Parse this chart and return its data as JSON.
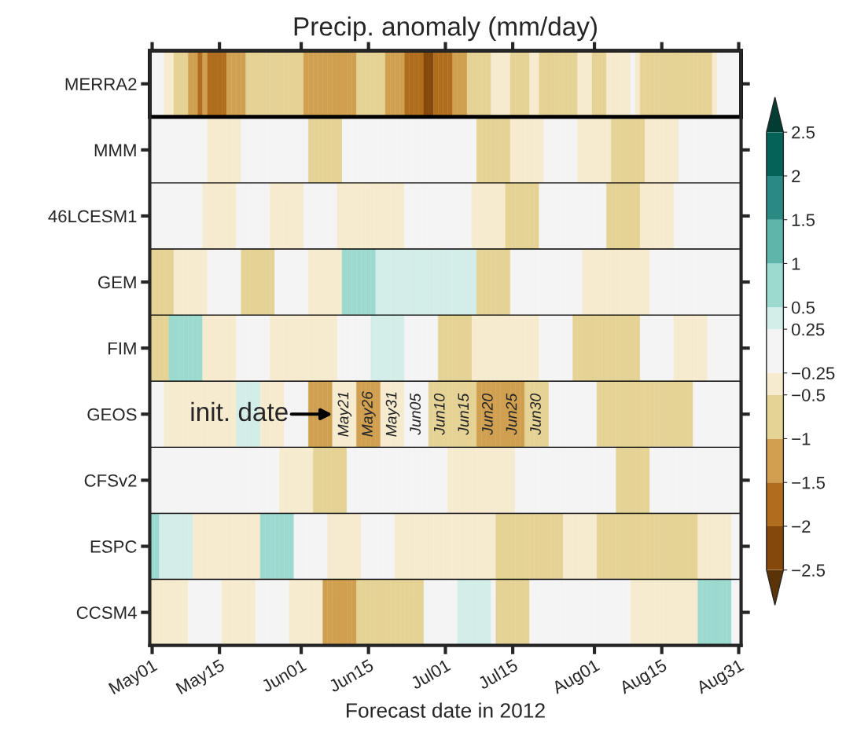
{
  "chart_data": {
    "type": "heatmap",
    "title": "Precip. anomaly (mm/day)",
    "xlabel": "Forecast date in 2012",
    "categories": [
      "May01",
      null,
      null,
      null,
      null,
      null,
      null,
      null,
      null,
      null,
      null,
      null,
      null,
      null,
      "May15",
      null,
      null,
      null,
      null,
      null,
      null,
      null,
      null,
      null,
      null,
      null,
      null,
      null,
      null,
      null,
      null,
      "Jun01",
      null,
      null,
      null,
      null,
      null,
      null,
      null,
      null,
      null,
      null,
      null,
      null,
      null,
      "Jun15",
      null,
      null,
      null,
      null,
      null,
      null,
      null,
      null,
      null,
      null,
      null,
      null,
      null,
      null,
      null,
      "Jul01",
      null,
      null,
      null,
      null,
      null,
      null,
      null,
      null,
      null,
      null,
      null,
      null,
      null,
      "Jul15",
      null,
      null,
      null,
      null,
      null,
      null,
      null,
      null,
      null,
      null,
      null,
      null,
      null,
      null,
      null,
      null,
      "Aug01",
      null,
      null,
      null,
      null,
      null,
      null,
      null,
      null,
      null,
      null,
      null,
      null,
      null,
      "Aug15",
      null,
      null,
      null,
      null,
      null,
      null,
      null,
      null,
      null,
      null,
      null,
      null,
      null,
      null,
      null,
      "Aug31"
    ],
    "y_categories": [
      "MERRA2",
      "MMM",
      "46LCESM1",
      "GEM",
      "FIM",
      "GEOS",
      "CFSv2",
      "ESPC",
      "CCSM4"
    ],
    "cells": [
      [
        0,
        0,
        0,
        -0.4,
        -0.4,
        -0.75,
        -0.75,
        -0.75,
        -1.25,
        -1.25,
        -1.75,
        -1.25,
        -1.75,
        -1.75,
        -1.75,
        -1.75,
        -1.25,
        -1.25,
        -1.25,
        -1.25,
        -0.75,
        -0.75,
        -0.75,
        -0.75,
        -0.75,
        -0.75,
        -0.75,
        -0.75,
        -0.75,
        -0.75,
        -0.75,
        -0.75,
        -1.25,
        -1.25,
        -1.25,
        -1.25,
        -1.25,
        -1.25,
        -1.25,
        -1.25,
        -1.25,
        -1.25,
        -1.25,
        -0.75,
        -0.75,
        -0.75,
        -0.75,
        -0.75,
        -0.75,
        -1.25,
        -1.25,
        -1.25,
        -1.25,
        -1.75,
        -1.75,
        -1.75,
        -1.75,
        -2.25,
        -2.25,
        -1.75,
        -1.75,
        -1.75,
        -1.75,
        -1.25,
        -1.25,
        -1.25,
        -0.75,
        -0.75,
        -0.75,
        -0.75,
        -0.75,
        -0.4,
        -0.4,
        -0.4,
        -0.4,
        -0.75,
        -0.75,
        -0.75,
        -0.75,
        -0.4,
        -0.4,
        -0.75,
        -0.75,
        -0.75,
        -0.75,
        -0.75,
        -0.75,
        -0.75,
        -0.75,
        -0.4,
        -0.4,
        -0.4,
        -0.75,
        -0.75,
        -0.75,
        -0.4,
        -0.4,
        -0.4,
        -0.4,
        -0.4,
        0,
        -0.4,
        -0.75,
        -0.75,
        -0.75,
        -0.75,
        -0.75,
        -0.75,
        -0.75,
        -0.75,
        -0.75,
        -0.75,
        -0.75,
        -0.75,
        -0.75,
        -0.75,
        -0.75,
        -0.4,
        0,
        0,
        0,
        0,
        0
      ],
      [
        0,
        0,
        0,
        0,
        0,
        0,
        0,
        0,
        0,
        0,
        0,
        0,
        -0.4,
        -0.4,
        -0.4,
        -0.4,
        -0.4,
        -0.4,
        -0.4,
        0,
        0,
        0,
        0,
        0,
        0,
        0,
        0,
        0,
        0,
        0,
        0,
        0,
        0,
        -0.75,
        -0.75,
        -0.75,
        -0.75,
        -0.75,
        -0.75,
        -0.75,
        0,
        0,
        0,
        0,
        0,
        0,
        0,
        0,
        0,
        0,
        0,
        0,
        0,
        0,
        0,
        0,
        0,
        0,
        0,
        0,
        0,
        0,
        0,
        0,
        0,
        0,
        0,
        0,
        -0.75,
        -0.75,
        -0.75,
        -0.75,
        -0.75,
        -0.75,
        -0.75,
        -0.4,
        -0.4,
        -0.4,
        -0.4,
        -0.4,
        -0.4,
        -0.4,
        0,
        0,
        0,
        0,
        0,
        0,
        0,
        -0.4,
        -0.4,
        -0.4,
        -0.4,
        -0.4,
        -0.4,
        -0.4,
        -0.75,
        -0.75,
        -0.75,
        -0.75,
        -0.75,
        -0.75,
        -0.75,
        -0.4,
        -0.4,
        -0.4,
        -0.4,
        -0.4,
        -0.4,
        -0.4,
        0,
        0,
        0,
        0,
        0,
        0,
        0,
        0,
        0,
        0,
        0,
        0,
        0
      ],
      [
        0,
        0,
        0,
        0,
        0,
        0,
        0,
        0,
        0,
        0,
        0,
        -0.4,
        -0.4,
        -0.4,
        -0.4,
        -0.4,
        -0.4,
        -0.4,
        0,
        0,
        0,
        0,
        0,
        0,
        0,
        -0.4,
        -0.4,
        -0.4,
        -0.4,
        -0.4,
        -0.4,
        -0.4,
        0,
        0,
        0,
        0,
        0,
        0,
        0,
        -0.4,
        -0.4,
        -0.4,
        -0.4,
        -0.4,
        -0.4,
        -0.4,
        -0.4,
        -0.4,
        -0.4,
        -0.4,
        -0.4,
        -0.4,
        -0.4,
        0,
        0,
        0,
        0,
        0,
        0,
        0,
        0,
        0,
        0,
        0,
        0,
        0,
        0,
        -0.4,
        -0.4,
        -0.4,
        -0.4,
        -0.4,
        -0.4,
        -0.4,
        -0.75,
        -0.75,
        -0.75,
        -0.75,
        -0.75,
        -0.75,
        -0.75,
        0,
        0,
        0,
        0,
        0,
        0,
        0,
        0,
        0,
        0,
        0,
        0,
        0,
        0,
        -0.75,
        -0.75,
        -0.75,
        -0.75,
        -0.75,
        -0.75,
        -0.75,
        -0.4,
        -0.4,
        -0.4,
        -0.4,
        -0.4,
        -0.4,
        -0.4,
        0,
        0,
        0,
        0,
        0,
        0,
        0,
        0,
        0,
        0,
        0,
        0,
        0,
        0
      ],
      [
        -0.75,
        -0.75,
        -0.75,
        -0.75,
        -0.75,
        -0.4,
        -0.4,
        -0.4,
        -0.4,
        -0.4,
        -0.4,
        -0.4,
        0,
        0,
        0,
        0,
        0,
        0,
        0,
        -0.75,
        -0.75,
        -0.75,
        -0.75,
        -0.75,
        -0.75,
        -0.75,
        0,
        0,
        0,
        0,
        0,
        0,
        0,
        -0.4,
        -0.4,
        -0.4,
        -0.4,
        -0.4,
        -0.4,
        -0.4,
        0.75,
        0.75,
        0.75,
        0.75,
        0.75,
        0.75,
        0.75,
        0.4,
        0.4,
        0.4,
        0.4,
        0.4,
        0.4,
        0.4,
        0.4,
        0.4,
        0.4,
        0.4,
        0.4,
        0.4,
        0.4,
        0.4,
        0.4,
        0.4,
        0.4,
        0.4,
        0.4,
        0.4,
        -0.75,
        -0.75,
        -0.75,
        -0.75,
        -0.75,
        -0.75,
        -0.75,
        0,
        0,
        0,
        0,
        0,
        0,
        0,
        0,
        0,
        0,
        0,
        0,
        0,
        0,
        0,
        -0.4,
        -0.4,
        -0.4,
        -0.4,
        -0.4,
        -0.4,
        -0.4,
        -0.4,
        -0.4,
        -0.4,
        -0.4,
        -0.4,
        -0.4,
        -0.4,
        0,
        0,
        0,
        0,
        0,
        0,
        0,
        0,
        0,
        0,
        0,
        0,
        0,
        0,
        0,
        0,
        0,
        0,
        0
      ],
      [
        -0.75,
        -0.75,
        -0.75,
        -0.75,
        0.75,
        0.75,
        0.75,
        0.75,
        0.75,
        0.75,
        0.75,
        -0.4,
        -0.4,
        -0.4,
        -0.4,
        -0.4,
        -0.4,
        -0.4,
        0,
        0,
        0,
        0,
        0,
        0,
        0,
        -0.4,
        -0.4,
        -0.4,
        -0.4,
        -0.4,
        -0.4,
        -0.4,
        -0.4,
        -0.4,
        -0.4,
        -0.4,
        -0.4,
        -0.4,
        -0.4,
        0,
        0,
        0,
        0,
        0,
        0,
        0,
        0.4,
        0.4,
        0.4,
        0.4,
        0.4,
        0.4,
        0.4,
        0,
        0,
        0,
        0,
        0,
        0,
        0,
        -0.75,
        -0.75,
        -0.75,
        -0.75,
        -0.75,
        -0.75,
        -0.75,
        -0.4,
        -0.4,
        -0.4,
        -0.4,
        -0.4,
        -0.4,
        -0.4,
        -0.4,
        -0.4,
        -0.4,
        -0.4,
        -0.4,
        -0.4,
        -0.4,
        0,
        0,
        0,
        0,
        0,
        0,
        0,
        -0.75,
        -0.75,
        -0.75,
        -0.75,
        -0.75,
        -0.75,
        -0.75,
        -0.75,
        -0.75,
        -0.75,
        -0.75,
        -0.75,
        -0.75,
        -0.75,
        0,
        0,
        0,
        0,
        0,
        0,
        0,
        -0.4,
        -0.4,
        -0.4,
        -0.4,
        -0.4,
        -0.4,
        -0.4,
        0,
        0,
        0,
        0,
        0,
        0,
        0
      ],
      [
        0,
        0,
        0,
        -0.4,
        -0.4,
        -0.4,
        -0.4,
        -0.4,
        -0.4,
        -0.4,
        -0.4,
        -0.4,
        -0.4,
        -0.4,
        -0.4,
        -0.4,
        -0.4,
        -0.4,
        0.4,
        0.4,
        0.4,
        0.4,
        0.4,
        -0.4,
        -0.4,
        -0.4,
        -0.4,
        -0.4,
        0,
        0,
        0,
        0,
        0,
        -1.25,
        -1.25,
        -1.25,
        -1.25,
        -1.25,
        -0.4,
        -0.4,
        -0.4,
        -0.4,
        -0.4,
        -1.25,
        -1.25,
        -1.25,
        -1.25,
        -1.25,
        -0.4,
        -0.4,
        -0.4,
        -0.4,
        -0.4,
        0,
        0,
        0,
        0,
        0,
        -0.75,
        -0.75,
        -0.75,
        -0.75,
        -0.75,
        -0.75,
        -0.75,
        -0.75,
        -0.75,
        -0.75,
        -1.25,
        -1.25,
        -1.25,
        -1.25,
        -1.25,
        -1.25,
        -1.25,
        -1.25,
        -1.25,
        -1.25,
        -0.75,
        -0.75,
        -0.75,
        -0.75,
        -0.75,
        0,
        0,
        0,
        0,
        0,
        0,
        0,
        0,
        0,
        0,
        -0.75,
        -0.75,
        -0.75,
        -0.75,
        -0.75,
        -0.75,
        -0.75,
        -0.75,
        -0.75,
        -0.75,
        -0.75,
        -0.75,
        -0.75,
        -0.75,
        -0.75,
        -0.75,
        -0.75,
        -0.75,
        -0.75,
        -0.75,
        0,
        0,
        0,
        0,
        0,
        0,
        0,
        0,
        0,
        0
      ],
      [
        0,
        0,
        0,
        0,
        0,
        0,
        0,
        0,
        0,
        0,
        0,
        0,
        0,
        0,
        0,
        0,
        0,
        0,
        0,
        0,
        0,
        0,
        0,
        0,
        0,
        0,
        0,
        -0.4,
        -0.4,
        -0.4,
        -0.4,
        -0.4,
        -0.4,
        -0.4,
        -0.75,
        -0.75,
        -0.75,
        -0.75,
        -0.75,
        -0.75,
        -0.75,
        0,
        0,
        0,
        0,
        0,
        0,
        0,
        0,
        0,
        0,
        0,
        0,
        0,
        0,
        0,
        0,
        0,
        0,
        0,
        0,
        0,
        -0.4,
        -0.4,
        -0.4,
        -0.4,
        -0.4,
        -0.4,
        -0.4,
        -0.4,
        -0.4,
        -0.4,
        -0.4,
        -0.4,
        -0.4,
        -0.4,
        0,
        0,
        0,
        0,
        0,
        0,
        0,
        0,
        0,
        0,
        0,
        0,
        0,
        0,
        0,
        0,
        0,
        0,
        0,
        0,
        0,
        -0.75,
        -0.75,
        -0.75,
        -0.75,
        -0.75,
        -0.75,
        -0.75,
        0,
        0,
        0,
        0,
        0,
        0,
        0,
        0,
        0,
        0,
        0,
        0,
        0,
        0,
        0,
        0,
        0,
        0,
        0
      ],
      [
        0.75,
        0.75,
        0.4,
        0.4,
        0.4,
        0.4,
        0.4,
        0.4,
        0.4,
        -0.4,
        -0.4,
        -0.4,
        -0.4,
        -0.4,
        -0.4,
        -0.4,
        -0.4,
        -0.4,
        -0.4,
        -0.4,
        -0.4,
        -0.4,
        -0.4,
        0.75,
        0.75,
        0.75,
        0.75,
        0.75,
        0.75,
        0.75,
        0,
        0,
        0,
        0,
        0,
        0,
        0,
        -0.4,
        -0.4,
        -0.4,
        -0.4,
        -0.4,
        -0.4,
        -0.4,
        0,
        0,
        0,
        0,
        0,
        0,
        0,
        -0.4,
        -0.4,
        -0.4,
        -0.4,
        -0.4,
        -0.4,
        -0.4,
        -0.4,
        -0.4,
        -0.4,
        -0.4,
        -0.4,
        -0.4,
        -0.4,
        -0.4,
        -0.4,
        -0.4,
        -0.4,
        -0.4,
        -0.4,
        -0.4,
        -0.75,
        -0.75,
        -0.75,
        -0.75,
        -0.75,
        -0.75,
        -0.75,
        -0.75,
        -0.75,
        -0.75,
        -0.75,
        -0.75,
        -0.75,
        -0.75,
        -0.4,
        -0.4,
        -0.4,
        -0.4,
        -0.4,
        -0.4,
        -0.4,
        -0.75,
        -0.75,
        -0.75,
        -0.75,
        -0.75,
        -0.75,
        -0.75,
        -0.75,
        -0.75,
        -0.75,
        -0.75,
        -0.75,
        -0.75,
        -0.75,
        -0.75,
        -0.75,
        -0.75,
        -0.75,
        -0.75,
        -0.75,
        -0.75,
        -0.4,
        -0.4,
        -0.4,
        -0.4,
        -0.4,
        -0.4,
        -0.4,
        0,
        0
      ],
      [
        -0.4,
        -0.4,
        -0.4,
        -0.4,
        -0.4,
        -0.4,
        -0.4,
        -0.4,
        0,
        0,
        0,
        0,
        0,
        0,
        0,
        -0.4,
        -0.4,
        -0.4,
        -0.4,
        -0.4,
        -0.4,
        -0.4,
        0,
        0,
        0,
        0,
        0,
        0,
        0,
        -0.4,
        -0.4,
        -0.4,
        -0.4,
        -0.4,
        -0.4,
        -0.4,
        -1.25,
        -1.25,
        -1.25,
        -1.25,
        -1.25,
        -1.25,
        -1.25,
        -0.75,
        -0.75,
        -0.75,
        -0.75,
        -0.75,
        -0.75,
        -0.75,
        -0.75,
        -0.75,
        -0.75,
        -0.75,
        -0.75,
        -0.75,
        -0.75,
        0,
        0,
        0,
        0,
        0,
        0,
        0,
        0.4,
        0.4,
        0.4,
        0.4,
        0.4,
        0.4,
        0.4,
        0,
        -0.75,
        -0.75,
        -0.75,
        -0.75,
        -0.75,
        -0.75,
        -0.75,
        0,
        0,
        0,
        0,
        0,
        0,
        0,
        0,
        0,
        0,
        0,
        0,
        0,
        0,
        0,
        0,
        0,
        0,
        0,
        0,
        0,
        -0.4,
        -0.4,
        -0.4,
        -0.4,
        -0.4,
        -0.4,
        -0.4,
        -0.4,
        -0.4,
        -0.4,
        -0.4,
        -0.4,
        -0.4,
        -0.4,
        0.75,
        0.75,
        0.75,
        0.75,
        0.75,
        0.75,
        0.75,
        0,
        0
      ]
    ],
    "cell_labels": [
      null,
      null,
      null,
      null,
      null,
      [
        null,
        null,
        null,
        null,
        null,
        null,
        null,
        null,
        null,
        null,
        null,
        null,
        null,
        null,
        null,
        null,
        null,
        null,
        null,
        null,
        null,
        null,
        null,
        null,
        null,
        null,
        null,
        null,
        null,
        null,
        null,
        null,
        null,
        null,
        null,
        null,
        null,
        null,
        null,
        null,
        "May21",
        null,
        null,
        null,
        null,
        "May26",
        null,
        null,
        null,
        null,
        "May31",
        null,
        null,
        null,
        null,
        "Jun05",
        null,
        null,
        null,
        null,
        "Jun10",
        null,
        null,
        null,
        null,
        "Jun15",
        null,
        null,
        null,
        null,
        "Jun20",
        null,
        null,
        null,
        null,
        "Jun25",
        null,
        null,
        null,
        null,
        "Jun30",
        null,
        null,
        null,
        null,
        null,
        null,
        null,
        null,
        null,
        null,
        null,
        null,
        null,
        null,
        null,
        null,
        null,
        null,
        null,
        null,
        null,
        null,
        null,
        null,
        null,
        null,
        null,
        null,
        null,
        null,
        null,
        null,
        null,
        null,
        null,
        null,
        null,
        null,
        null,
        null,
        null,
        null
      ],
      null,
      null,
      null
    ],
    "annotations": [
      "init. date"
    ],
    "cticks": [
      -2.5,
      -2,
      -1.5,
      -1,
      -0.5,
      -0.25,
      0.25,
      0.5,
      1,
      1.5,
      2,
      2.5
    ],
    "colors": [
      "#5a3306",
      "#84490a",
      "#b06d1d",
      "#d0a050",
      "#e5d295",
      "#f6ebcf",
      "#f4f4f4",
      "#d3ede8",
      "#9cdad0",
      "#5fb5aa",
      "#2a8a83",
      "#046259",
      "#023d33"
    ]
  }
}
